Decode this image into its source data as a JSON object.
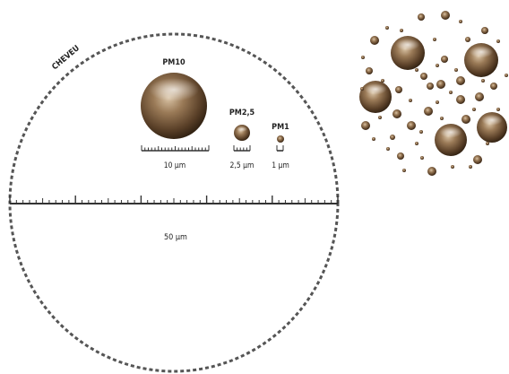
{
  "hair_label": "CHEVEU",
  "particles": {
    "pm10": {
      "label": "PM10",
      "scale_label": "10 µm",
      "diameter_um": 10
    },
    "pm25": {
      "label": "PM2,5",
      "scale_label": "2,5 µm",
      "diameter_um": 2.5
    },
    "pm1": {
      "label": "PM1",
      "scale_label": "1 µm",
      "diameter_um": 1
    }
  },
  "hair_scale_label": "50 µm",
  "hair_diameter_um": 50,
  "colors": {
    "sphere_dark": "#3f2c18",
    "sphere_mid": "#7a5c3e",
    "sphere_light": "#c9ae8f",
    "dash": "#555555",
    "ruler": "#333333"
  }
}
